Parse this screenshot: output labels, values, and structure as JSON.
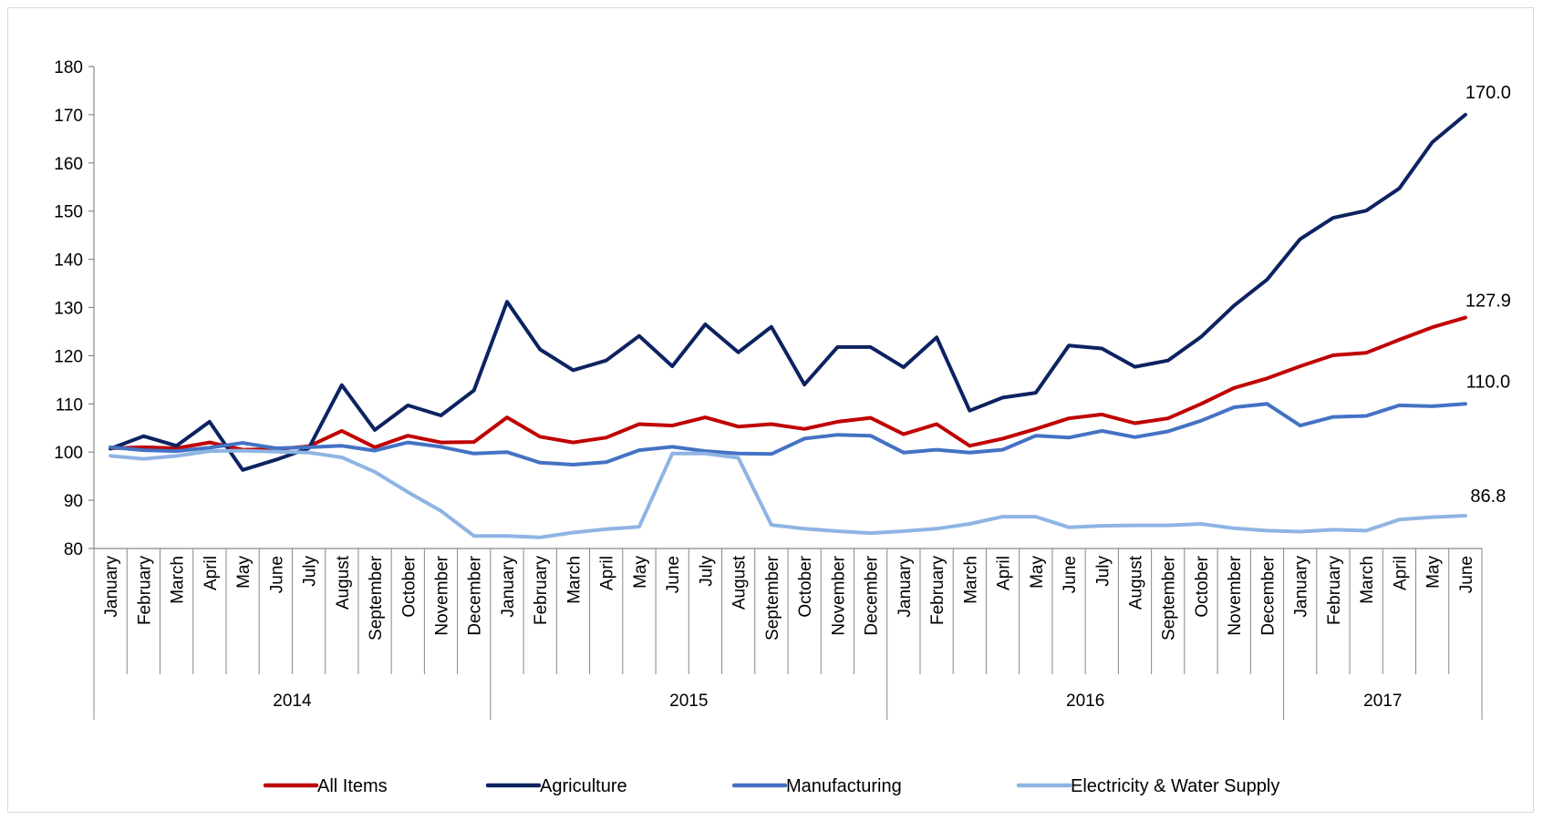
{
  "chart_data": {
    "type": "line",
    "title": "",
    "xlabel": "",
    "ylabel": "",
    "ylim": [
      80,
      180
    ],
    "yticks": [
      80,
      90,
      100,
      110,
      120,
      130,
      140,
      150,
      160,
      170,
      180
    ],
    "grid": false,
    "legend_position": "bottom",
    "categories": [
      "January",
      "February",
      "March",
      "April",
      "May",
      "June",
      "July",
      "August",
      "September",
      "October",
      "November",
      "December",
      "January",
      "February",
      "March",
      "April",
      "May",
      "June",
      "July",
      "August",
      "September",
      "October",
      "November",
      "December",
      "January",
      "February",
      "March",
      "April",
      "May",
      "June",
      "July",
      "August",
      "September",
      "October",
      "November",
      "December",
      "January",
      "February",
      "March",
      "April",
      "May",
      "June"
    ],
    "year_groups": [
      {
        "label": "2014",
        "count": 12
      },
      {
        "label": "2015",
        "count": 12
      },
      {
        "label": "2016",
        "count": 12
      },
      {
        "label": "2017",
        "count": 6
      }
    ],
    "series": [
      {
        "name": "All Items",
        "color": "#c00000",
        "end_label": "127.9",
        "values": [
          100.8,
          101.0,
          100.8,
          102.0,
          100.5,
          100.6,
          101.2,
          104.4,
          101.0,
          103.4,
          102.0,
          102.1,
          107.2,
          103.2,
          102.0,
          103.0,
          105.8,
          105.5,
          107.2,
          105.3,
          105.8,
          104.8,
          106.3,
          107.1,
          103.7,
          105.8,
          101.3,
          102.8,
          104.8,
          107.0,
          107.8,
          106.0,
          107.0,
          110.0,
          113.3,
          115.3,
          117.8,
          120.1,
          120.6,
          123.3,
          125.9,
          127.9
        ]
      },
      {
        "name": "Agriculture",
        "color": "#0d2261",
        "end_label": "170.0",
        "values": [
          100.7,
          103.3,
          101.3,
          106.3,
          96.3,
          98.4,
          100.8,
          113.9,
          104.6,
          109.7,
          107.6,
          112.8,
          131.2,
          121.3,
          117.0,
          119.0,
          124.1,
          117.8,
          126.5,
          120.7,
          126.0,
          114.0,
          121.8,
          121.8,
          117.6,
          123.8,
          108.6,
          111.3,
          112.3,
          122.1,
          121.5,
          117.7,
          119.0,
          123.9,
          130.4,
          135.8,
          144.2,
          148.6,
          150.1,
          154.7,
          164.3,
          170.0
        ]
      },
      {
        "name": "Manufacturing",
        "color": "#4472c4",
        "end_label": "110.0",
        "values": [
          101.0,
          100.4,
          100.2,
          100.9,
          101.9,
          100.8,
          101.0,
          101.3,
          100.3,
          102.0,
          101.1,
          99.7,
          100.0,
          97.8,
          97.4,
          97.9,
          100.4,
          101.1,
          100.2,
          99.7,
          99.6,
          102.8,
          103.6,
          103.4,
          99.9,
          100.5,
          99.9,
          100.5,
          103.4,
          103.0,
          104.4,
          103.1,
          104.3,
          106.5,
          109.3,
          110.0,
          105.5,
          107.3,
          107.5,
          109.7,
          109.5,
          110.0
        ]
      },
      {
        "name": "Electricity & Water Supply",
        "color": "#8eb4e3",
        "end_label": "86.8",
        "values": [
          99.2,
          98.6,
          99.2,
          100.2,
          100.3,
          100.1,
          99.9,
          98.9,
          95.9,
          91.7,
          87.8,
          82.6,
          82.6,
          82.3,
          83.3,
          84.0,
          84.5,
          99.7,
          99.7,
          98.8,
          84.9,
          84.1,
          83.6,
          83.2,
          83.6,
          84.1,
          85.1,
          86.6,
          86.6,
          84.4,
          84.7,
          84.8,
          84.8,
          85.1,
          84.2,
          83.7,
          83.5,
          83.9,
          83.7,
          86.0,
          86.5,
          86.8
        ]
      }
    ]
  }
}
